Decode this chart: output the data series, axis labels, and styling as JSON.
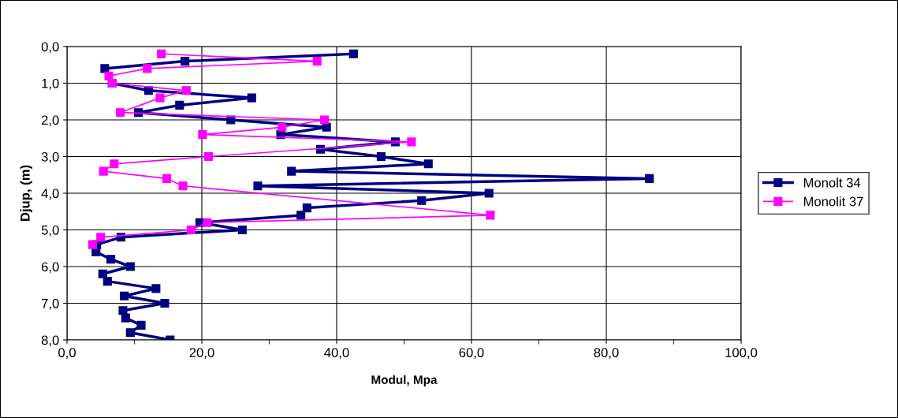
{
  "chart_data": {
    "type": "line",
    "xlabel": "Modul, Mpa",
    "ylabel": "Djup, (m)",
    "xlim": [
      0,
      100
    ],
    "xticks": [
      {
        "value": 0,
        "label": "0,0"
      },
      {
        "value": 10,
        "label": null
      },
      {
        "value": 20,
        "label": "20,0"
      },
      {
        "value": 30,
        "label": null
      },
      {
        "value": 40,
        "label": "40,0"
      },
      {
        "value": 50,
        "label": null
      },
      {
        "value": 60,
        "label": "60,0"
      },
      {
        "value": 70,
        "label": null
      },
      {
        "value": 80,
        "label": "80,0"
      },
      {
        "value": 90,
        "label": null
      },
      {
        "value": 100,
        "label": "100,0"
      }
    ],
    "ylim": [
      8,
      0
    ],
    "yticks": [
      {
        "value": 0,
        "label": "0,0"
      },
      {
        "value": 1,
        "label": "1,0"
      },
      {
        "value": 2,
        "label": "2,0"
      },
      {
        "value": 3,
        "label": "3,0"
      },
      {
        "value": 4,
        "label": "4,0"
      },
      {
        "value": 5,
        "label": "5,0"
      },
      {
        "value": 6,
        "label": "6,0"
      },
      {
        "value": 7,
        "label": "7,0"
      },
      {
        "value": 8,
        "label": "8,0"
      }
    ],
    "grid": true,
    "legend": "right",
    "marker": "square",
    "line_style": "solid",
    "series": [
      {
        "name": "Monolt 34",
        "color": "#000080",
        "x": [
          42.5,
          17.5,
          5.6,
          6.7,
          12.1,
          27.4,
          16.7,
          10.6,
          24.3,
          38.5,
          31.7,
          48.7,
          37.6,
          46.6,
          53.6,
          33.3,
          86.4,
          28.3,
          62.6,
          52.6,
          35.6,
          34.7,
          19.7,
          26.0,
          8.0,
          4.4,
          4.3,
          6.5,
          9.4,
          5.3,
          6.0,
          13.2,
          8.5,
          14.5,
          8.3,
          8.7,
          11.0,
          9.4,
          15.3
        ],
        "values": [
          0.2,
          0.4,
          0.6,
          1.0,
          1.2,
          1.4,
          1.6,
          1.8,
          2.0,
          2.2,
          2.4,
          2.6,
          2.8,
          3.0,
          3.2,
          3.4,
          3.6,
          3.8,
          4.0,
          4.2,
          4.4,
          4.6,
          4.8,
          5.0,
          5.2,
          5.4,
          5.6,
          5.8,
          6.0,
          6.2,
          6.4,
          6.6,
          6.8,
          7.0,
          7.2,
          7.4,
          7.6,
          7.8,
          8.0
        ]
      },
      {
        "name": "Monolit 37",
        "color": "#ff00ff",
        "x": [
          14.0,
          37.1,
          11.9,
          6.2,
          6.7,
          17.7,
          13.8,
          7.9,
          38.2,
          31.9,
          20.1,
          51.1,
          21.0,
          7.0,
          5.4,
          14.8,
          17.2,
          62.8,
          20.8,
          18.4,
          5.0,
          3.8
        ],
        "values": [
          0.2,
          0.4,
          0.6,
          0.8,
          1.0,
          1.2,
          1.4,
          1.8,
          2.0,
          2.2,
          2.4,
          2.6,
          3.0,
          3.2,
          3.4,
          3.6,
          3.8,
          4.6,
          4.8,
          5.0,
          5.2,
          5.4
        ]
      }
    ]
  }
}
